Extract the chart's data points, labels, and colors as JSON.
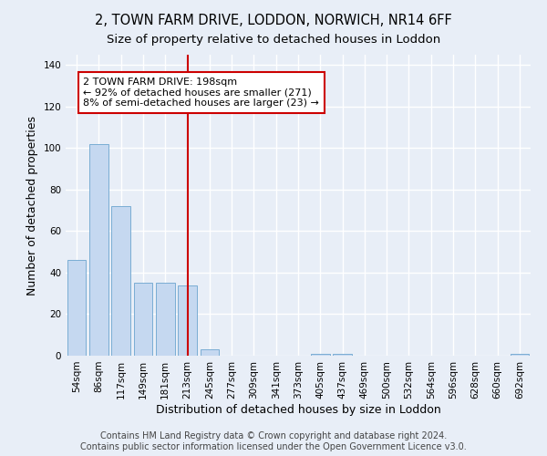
{
  "title_line1": "2, TOWN FARM DRIVE, LODDON, NORWICH, NR14 6FF",
  "title_line2": "Size of property relative to detached houses in Loddon",
  "xlabel": "Distribution of detached houses by size in Loddon",
  "ylabel": "Number of detached properties",
  "categories": [
    "54sqm",
    "86sqm",
    "117sqm",
    "149sqm",
    "181sqm",
    "213sqm",
    "245sqm",
    "277sqm",
    "309sqm",
    "341sqm",
    "373sqm",
    "405sqm",
    "437sqm",
    "469sqm",
    "500sqm",
    "532sqm",
    "564sqm",
    "596sqm",
    "628sqm",
    "660sqm",
    "692sqm"
  ],
  "values": [
    46,
    102,
    72,
    35,
    35,
    34,
    3,
    0,
    0,
    0,
    0,
    1,
    1,
    0,
    0,
    0,
    0,
    0,
    0,
    0,
    1
  ],
  "bar_color": "#c5d8f0",
  "bar_edge_color": "#7aadd4",
  "vline_color": "#cc0000",
  "vline_x": 5,
  "annotation_text": "2 TOWN FARM DRIVE: 198sqm\n← 92% of detached houses are smaller (271)\n8% of semi-detached houses are larger (23) →",
  "annotation_box_color": "#ffffff",
  "annotation_box_edge": "#cc0000",
  "ylim": [
    0,
    145
  ],
  "yticks": [
    0,
    20,
    40,
    60,
    80,
    100,
    120,
    140
  ],
  "footnote": "Contains HM Land Registry data © Crown copyright and database right 2024.\nContains public sector information licensed under the Open Government Licence v3.0.",
  "bg_color": "#e8eef7",
  "plot_bg_color": "#e8eef7",
  "grid_color": "#ffffff",
  "title_fontsize": 10.5,
  "subtitle_fontsize": 9.5,
  "axis_label_fontsize": 9,
  "tick_fontsize": 7.5,
  "annotation_fontsize": 8,
  "footnote_fontsize": 7
}
